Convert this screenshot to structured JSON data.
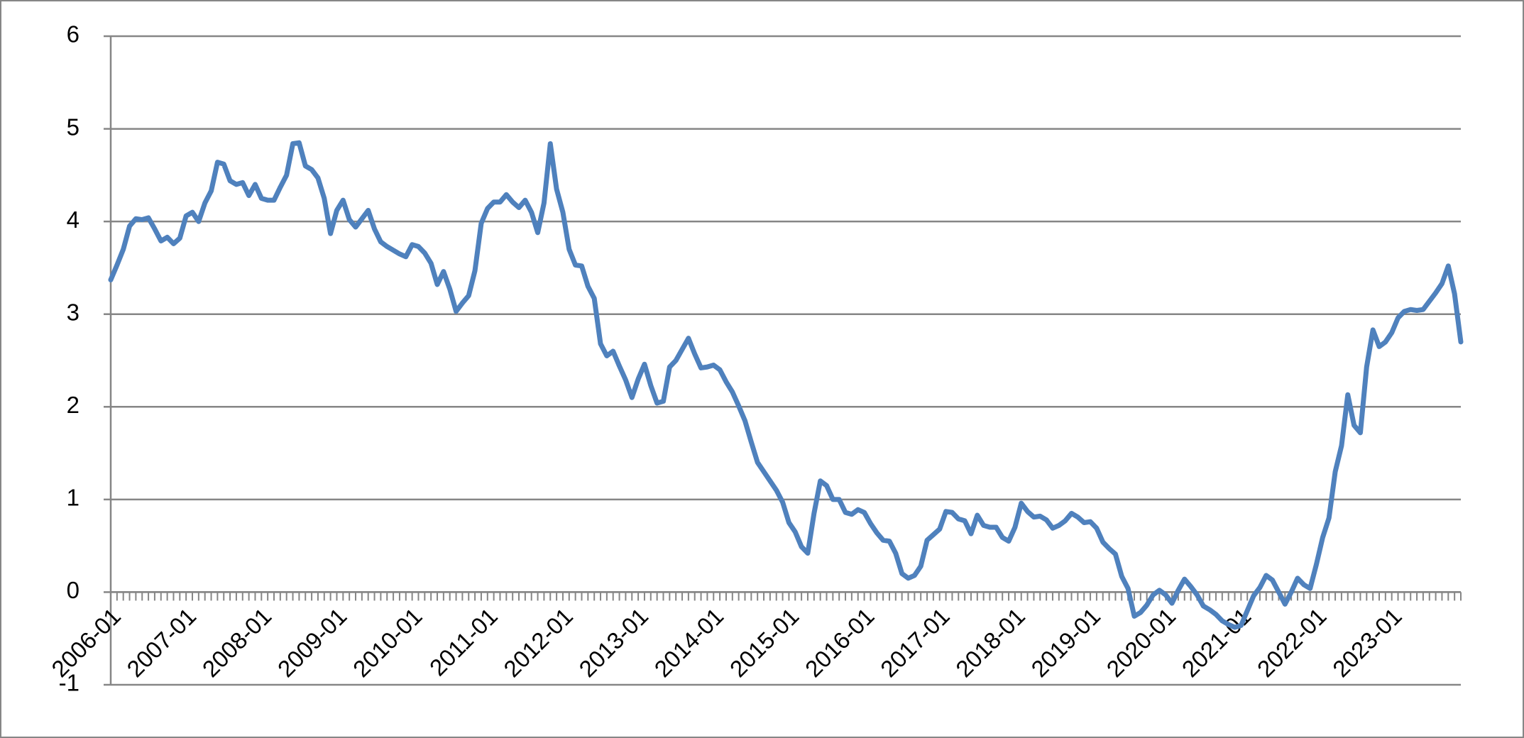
{
  "chart_data": {
    "type": "line",
    "categories": [
      "2006-01",
      null,
      null,
      null,
      null,
      null,
      null,
      null,
      null,
      null,
      null,
      null,
      "2007-01",
      null,
      null,
      null,
      null,
      null,
      null,
      null,
      null,
      null,
      null,
      null,
      "2008-01",
      null,
      null,
      null,
      null,
      null,
      null,
      null,
      null,
      null,
      null,
      null,
      "2009-01",
      null,
      null,
      null,
      null,
      null,
      null,
      null,
      null,
      null,
      null,
      null,
      "2010-01",
      null,
      null,
      null,
      null,
      null,
      null,
      null,
      null,
      null,
      null,
      null,
      "2011-01",
      null,
      null,
      null,
      null,
      null,
      null,
      null,
      null,
      null,
      null,
      null,
      "2012-01",
      null,
      null,
      null,
      null,
      null,
      null,
      null,
      null,
      null,
      null,
      null,
      "2013-01",
      null,
      null,
      null,
      null,
      null,
      null,
      null,
      null,
      null,
      null,
      null,
      "2014-01",
      null,
      null,
      null,
      null,
      null,
      null,
      null,
      null,
      null,
      null,
      null,
      "2015-01",
      null,
      null,
      null,
      null,
      null,
      null,
      null,
      null,
      null,
      null,
      null,
      "2016-01",
      null,
      null,
      null,
      null,
      null,
      null,
      null,
      null,
      null,
      null,
      null,
      "2017-01",
      null,
      null,
      null,
      null,
      null,
      null,
      null,
      null,
      null,
      null,
      null,
      "2018-01",
      null,
      null,
      null,
      null,
      null,
      null,
      null,
      null,
      null,
      null,
      null,
      "2019-01",
      null,
      null,
      null,
      null,
      null,
      null,
      null,
      null,
      null,
      null,
      null,
      "2020-01",
      null,
      null,
      null,
      null,
      null,
      null,
      null,
      null,
      null,
      null,
      null,
      "2021-01",
      null,
      null,
      null,
      null,
      null,
      null,
      null,
      null,
      null,
      null,
      null,
      "2022-01",
      null,
      null,
      null,
      null,
      null,
      null,
      null,
      null,
      null,
      null,
      null,
      "2023-01",
      null,
      null,
      null,
      null,
      null,
      null,
      null,
      null,
      null,
      null,
      null
    ],
    "values": [
      3.37,
      3.53,
      3.7,
      3.95,
      4.03,
      4.02,
      4.04,
      3.92,
      3.79,
      3.83,
      3.76,
      3.82,
      4.06,
      4.1,
      4.0,
      4.2,
      4.33,
      4.64,
      4.62,
      4.44,
      4.4,
      4.42,
      4.28,
      4.4,
      4.25,
      4.23,
      4.23,
      4.37,
      4.5,
      4.84,
      4.85,
      4.6,
      4.56,
      4.47,
      4.25,
      3.87,
      4.12,
      4.23,
      4.02,
      3.94,
      4.03,
      4.12,
      3.92,
      3.78,
      3.73,
      3.69,
      3.65,
      3.62,
      3.75,
      3.73,
      3.66,
      3.55,
      3.32,
      3.46,
      3.27,
      3.03,
      3.12,
      3.2,
      3.47,
      3.98,
      4.14,
      4.21,
      4.21,
      4.29,
      4.21,
      4.15,
      4.23,
      4.1,
      3.88,
      4.2,
      4.84,
      4.35,
      4.1,
      3.7,
      3.53,
      3.52,
      3.3,
      3.17,
      2.68,
      2.55,
      2.6,
      2.44,
      2.29,
      2.1,
      2.3,
      2.46,
      2.23,
      2.04,
      2.06,
      2.43,
      2.5,
      2.62,
      2.74,
      2.57,
      2.42,
      2.43,
      2.45,
      2.4,
      2.27,
      2.16,
      2.01,
      1.85,
      1.62,
      1.4,
      1.3,
      1.2,
      1.1,
      0.97,
      0.75,
      0.65,
      0.49,
      0.42,
      0.85,
      1.2,
      1.15,
      1.0,
      1.0,
      0.86,
      0.84,
      0.89,
      0.86,
      0.74,
      0.64,
      0.56,
      0.55,
      0.42,
      0.2,
      0.15,
      0.18,
      0.28,
      0.56,
      0.62,
      0.68,
      0.87,
      0.86,
      0.79,
      0.77,
      0.63,
      0.83,
      0.72,
      0.7,
      0.7,
      0.59,
      0.55,
      0.7,
      0.96,
      0.87,
      0.81,
      0.82,
      0.78,
      0.69,
      0.72,
      0.77,
      0.85,
      0.81,
      0.75,
      0.76,
      0.69,
      0.54,
      0.47,
      0.41,
      0.17,
      0.04,
      -0.26,
      -0.22,
      -0.14,
      -0.03,
      0.02,
      -0.03,
      -0.12,
      0.02,
      0.14,
      0.06,
      -0.03,
      -0.15,
      -0.19,
      -0.24,
      -0.31,
      -0.35,
      -0.38,
      -0.36,
      -0.2,
      -0.04,
      0.05,
      0.18,
      0.13,
      0.0,
      -0.13,
      0.0,
      0.15,
      0.08,
      0.04,
      0.3,
      0.59,
      0.8,
      1.3,
      1.58,
      2.13,
      1.8,
      1.72,
      2.43,
      2.83,
      2.65,
      2.7,
      2.8,
      2.96,
      3.03,
      3.05,
      3.04,
      3.05,
      3.14,
      3.23,
      3.33,
      3.52,
      3.22,
      2.7
    ],
    "color": "#4f81bd",
    "ylim": [
      -1,
      6
    ],
    "yticks": [
      -1,
      0,
      1,
      2,
      3,
      4,
      5,
      6
    ],
    "grid": true
  }
}
